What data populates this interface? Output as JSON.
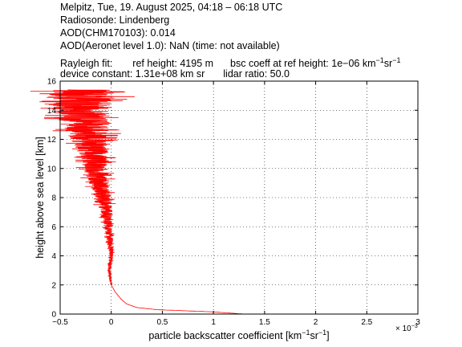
{
  "header": {
    "line1": "Melpitz, Tue, 19. August 2025, 04:18 – 06:18 UTC",
    "line2": "Radiosonde: Lindenberg",
    "line3": "AOD(CHM170103): 0.014",
    "line4": "AOD(Aeronet level 1.0): NaN   (time: not available)",
    "rayleigh_label": "Rayleigh fit:",
    "ref_height": "ref height: 4195 m",
    "bsc_coeff_prefix": "bsc coeff at ref height: 1e−06 km",
    "bsc_coeff_exp1": "−1",
    "bsc_coeff_mid": "sr",
    "bsc_coeff_exp2": "−1",
    "device_constant": "device constant: 1.31e+08 km sr",
    "lidar_ratio": "lidar ratio: 50.0"
  },
  "chart_data": {
    "type": "line",
    "xlabel_main": "particle backscatter coefficient [km",
    "xlabel_exp1": "−1",
    "xlabel_mid": "sr",
    "xlabel_exp2": "−1",
    "xlabel_end": "]",
    "ylabel": "height above sea level [km]",
    "x_multiplier": "× 10",
    "x_multiplier_exp": "−3",
    "xlim": [
      -0.5,
      3
    ],
    "ylim": [
      0,
      16
    ],
    "xticks": [
      "−0.5",
      "0",
      "0.5",
      "1",
      "1.5",
      "2",
      "2.5",
      "3"
    ],
    "xtick_values": [
      -0.5,
      0,
      0.5,
      1,
      1.5,
      2,
      2.5,
      3
    ],
    "yticks": [
      "0",
      "2",
      "4",
      "6",
      "8",
      "10",
      "12",
      "14",
      "16"
    ],
    "ytick_values": [
      0,
      2,
      4,
      6,
      8,
      10,
      12,
      14,
      16
    ],
    "grid": true,
    "line_color": "#ff0000",
    "profile_envelope": [
      {
        "h": 0.0,
        "x": 1.3
      },
      {
        "h": 0.15,
        "x": 1.0
      },
      {
        "h": 0.3,
        "x": 0.45
      },
      {
        "h": 0.45,
        "x": 0.25
      },
      {
        "h": 0.7,
        "x": 0.15
      },
      {
        "h": 1.0,
        "x": 0.1
      },
      {
        "h": 1.5,
        "x": 0.04
      },
      {
        "h": 2.0,
        "x": 0.0
      },
      {
        "h": 3.0,
        "x": -0.02
      },
      {
        "h": 4.0,
        "x": 0.0
      },
      {
        "h": 5.0,
        "x": -0.01
      },
      {
        "h": 6.0,
        "x": -0.03
      },
      {
        "h": 7.0,
        "x": -0.05
      },
      {
        "h": 8.0,
        "x": -0.08
      },
      {
        "h": 9.0,
        "x": -0.12
      },
      {
        "h": 10.0,
        "x": -0.15
      },
      {
        "h": 11.0,
        "x": -0.18
      },
      {
        "h": 12.0,
        "x": -0.22
      },
      {
        "h": 13.0,
        "x": -0.25
      },
      {
        "h": 14.0,
        "x": -0.3
      },
      {
        "h": 15.0,
        "x": -0.3
      },
      {
        "h": 15.4,
        "x": -0.3
      }
    ],
    "profile_noise": [
      {
        "h": 2.0,
        "amp": 0.01
      },
      {
        "h": 4.0,
        "amp": 0.02
      },
      {
        "h": 6.0,
        "amp": 0.04
      },
      {
        "h": 8.0,
        "amp": 0.08
      },
      {
        "h": 10.0,
        "amp": 0.12
      },
      {
        "h": 12.0,
        "amp": 0.18
      },
      {
        "h": 14.0,
        "amp": 0.3
      },
      {
        "h": 15.4,
        "amp": 0.35
      }
    ]
  }
}
